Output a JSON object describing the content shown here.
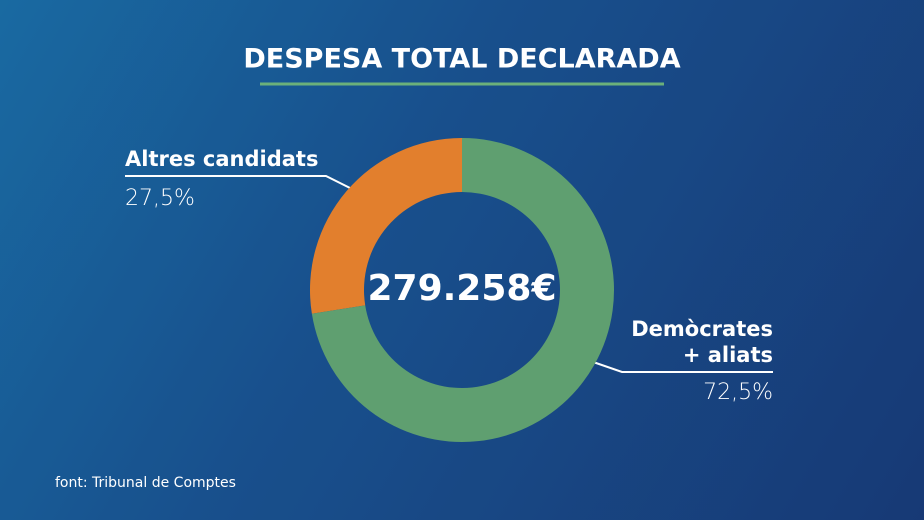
{
  "chart_data": {
    "type": "pie",
    "title": "DESPESA TOTAL DECLARADA",
    "center_label": "279.258€",
    "categories": [
      "Altres candidats",
      "Demòcrates + aliats"
    ],
    "values": [
      27.5,
      72.5
    ],
    "value_labels": [
      "27,5%",
      "72,5%"
    ],
    "colors": [
      "#e27f2d",
      "#5f9f70"
    ],
    "source": "font: Tribunal de Comptes"
  }
}
